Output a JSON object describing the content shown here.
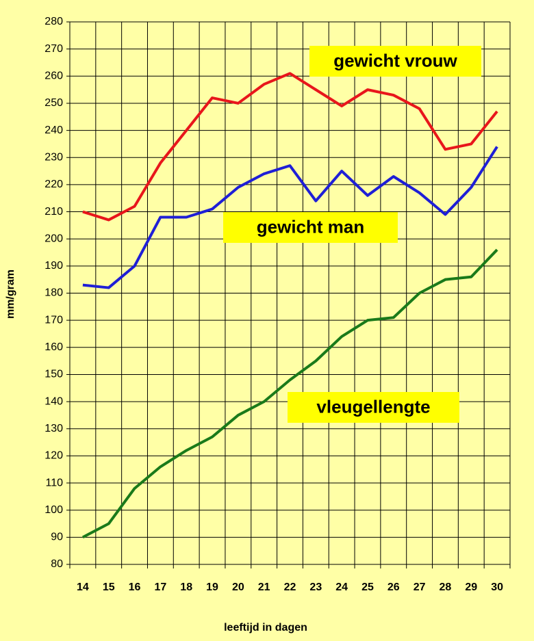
{
  "chart_data": {
    "type": "line",
    "x_label": "leeftijd in dagen",
    "y_label": "mm/gram",
    "categories": [
      "14",
      "15",
      "16",
      "17",
      "18",
      "19",
      "20",
      "21",
      "22",
      "23",
      "24",
      "25",
      "26",
      "27",
      "28",
      "29",
      "30"
    ],
    "series": [
      {
        "name": "gewicht vrouw",
        "color": "#e8161b",
        "values": [
          210,
          207,
          212,
          228,
          240,
          252,
          250,
          257,
          261,
          255,
          249,
          255,
          253,
          248,
          233,
          235,
          247
        ]
      },
      {
        "name": "gewicht man",
        "color": "#1f1fd6",
        "values": [
          183,
          182,
          190,
          208,
          208,
          211,
          219,
          224,
          227,
          214,
          225,
          216,
          223,
          217,
          209,
          219,
          234
        ]
      },
      {
        "name": "vleugellengte",
        "color": "#1a7a1a",
        "values": [
          90,
          95,
          108,
          116,
          122,
          127,
          135,
          140,
          148,
          155,
          164,
          170,
          171,
          180,
          185,
          186,
          196
        ]
      }
    ],
    "ylim": [
      80,
      280
    ],
    "yticks": [
      80,
      90,
      100,
      110,
      120,
      130,
      140,
      150,
      160,
      170,
      180,
      190,
      200,
      210,
      220,
      230,
      240,
      250,
      260,
      270,
      280
    ],
    "grid": true
  }
}
